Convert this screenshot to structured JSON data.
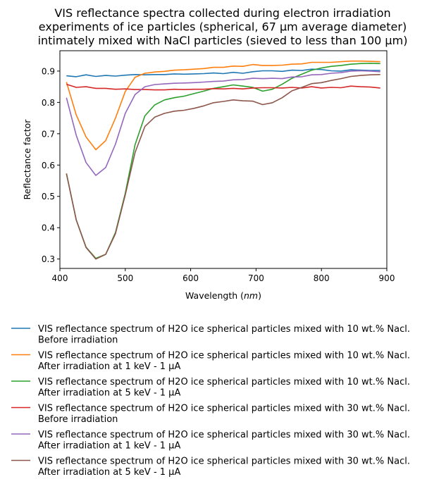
{
  "chart_data": {
    "type": "line",
    "title_lines": [
      "VIS reflectance spectra collected during electron irradiation",
      "experiments of ice particles (spherical, 67 μm average diameter)",
      "intimately mixed with NaCl particles (sieved to less than 100 μm)"
    ],
    "xlabel": "Wavelength (nm)",
    "ylabel": "Reflectance factor",
    "xlim": [
      400,
      900
    ],
    "ylim": [
      0.27,
      0.965
    ],
    "xticks": [
      400,
      500,
      600,
      700,
      800,
      900
    ],
    "yticks": [
      0.3,
      0.4,
      0.5,
      0.6,
      0.7,
      0.8,
      0.9
    ],
    "ytick_labels": [
      "0.3",
      "0.4",
      "0.5",
      "0.6",
      "0.7",
      "0.8",
      "0.9"
    ],
    "grid": false,
    "legend_position": "below",
    "x": [
      410,
      425,
      440,
      455,
      470,
      485,
      500,
      515,
      530,
      545,
      560,
      575,
      590,
      605,
      620,
      635,
      650,
      665,
      680,
      695,
      710,
      725,
      740,
      755,
      770,
      785,
      800,
      815,
      830,
      845,
      860,
      875,
      890
    ],
    "series": [
      {
        "name_lines": [
          "VIS reflectance spectrum of H2O ice spherical particles mixed with 10 wt.% Nacl.",
          "Before irradiation"
        ],
        "color": "#1f77b4",
        "values": [
          0.885,
          0.882,
          0.888,
          0.883,
          0.886,
          0.884,
          0.887,
          0.889,
          0.888,
          0.889,
          0.889,
          0.891,
          0.89,
          0.891,
          0.892,
          0.894,
          0.892,
          0.896,
          0.893,
          0.898,
          0.901,
          0.901,
          0.899,
          0.903,
          0.902,
          0.906,
          0.905,
          0.901,
          0.9,
          0.904,
          0.903,
          0.902,
          0.902
        ]
      },
      {
        "name_lines": [
          "VIS reflectance spectrum of H2O ice spherical particles mixed with 10 wt.% Nacl.",
          "After irradiation at 1 keV - 1 μA"
        ],
        "color": "#ff7f0e",
        "values": [
          0.865,
          0.76,
          0.69,
          0.649,
          0.678,
          0.75,
          0.835,
          0.88,
          0.893,
          0.897,
          0.899,
          0.903,
          0.904,
          0.906,
          0.908,
          0.912,
          0.912,
          0.916,
          0.915,
          0.921,
          0.918,
          0.918,
          0.919,
          0.922,
          0.923,
          0.928,
          0.928,
          0.928,
          0.93,
          0.932,
          0.932,
          0.931,
          0.93
        ]
      },
      {
        "name_lines": [
          "VIS reflectance spectrum of H2O ice spherical particles mixed with 10 wt.% Nacl.",
          "After irradiation at 5 keV - 1 μA"
        ],
        "color": "#2ca02c",
        "values": [
          0.573,
          0.425,
          0.338,
          0.302,
          0.315,
          0.385,
          0.51,
          0.665,
          0.757,
          0.792,
          0.808,
          0.815,
          0.82,
          0.828,
          0.836,
          0.845,
          0.85,
          0.856,
          0.852,
          0.848,
          0.836,
          0.842,
          0.858,
          0.877,
          0.89,
          0.903,
          0.91,
          0.915,
          0.918,
          0.922,
          0.924,
          0.925,
          0.924
        ]
      },
      {
        "name_lines": [
          "VIS reflectance spectrum of H2O ice spherical particles mixed with 30 wt.% Nacl.",
          "Before irradiation"
        ],
        "color": "#d62728",
        "values": [
          0.858,
          0.848,
          0.85,
          0.845,
          0.845,
          0.842,
          0.843,
          0.841,
          0.841,
          0.84,
          0.84,
          0.842,
          0.841,
          0.842,
          0.842,
          0.844,
          0.843,
          0.845,
          0.843,
          0.846,
          0.847,
          0.847,
          0.846,
          0.848,
          0.846,
          0.85,
          0.846,
          0.848,
          0.847,
          0.852,
          0.85,
          0.849,
          0.846
        ]
      },
      {
        "name_lines": [
          "VIS reflectance spectrum of H2O ice spherical particles mixed with 30 wt.% Nacl.",
          "After irradiation at 1 keV - 1 μA"
        ],
        "color": "#9467bd",
        "values": [
          0.815,
          0.695,
          0.608,
          0.567,
          0.592,
          0.667,
          0.765,
          0.825,
          0.85,
          0.857,
          0.859,
          0.861,
          0.862,
          0.863,
          0.865,
          0.867,
          0.868,
          0.872,
          0.873,
          0.877,
          0.876,
          0.877,
          0.876,
          0.881,
          0.882,
          0.888,
          0.889,
          0.893,
          0.895,
          0.9,
          0.901,
          0.9,
          0.898
        ]
      },
      {
        "name_lines": [
          "VIS reflectance spectrum of H2O ice spherical particles mixed with 30 wt.% Nacl.",
          "After irradiation at 5 keV - 1 μA"
        ],
        "color": "#8c564b",
        "values": [
          0.573,
          0.425,
          0.337,
          0.3,
          0.315,
          0.381,
          0.505,
          0.64,
          0.723,
          0.753,
          0.765,
          0.772,
          0.775,
          0.781,
          0.789,
          0.799,
          0.803,
          0.808,
          0.805,
          0.804,
          0.793,
          0.799,
          0.815,
          0.837,
          0.848,
          0.86,
          0.863,
          0.87,
          0.876,
          0.883,
          0.886,
          0.888,
          0.889
        ]
      }
    ]
  }
}
